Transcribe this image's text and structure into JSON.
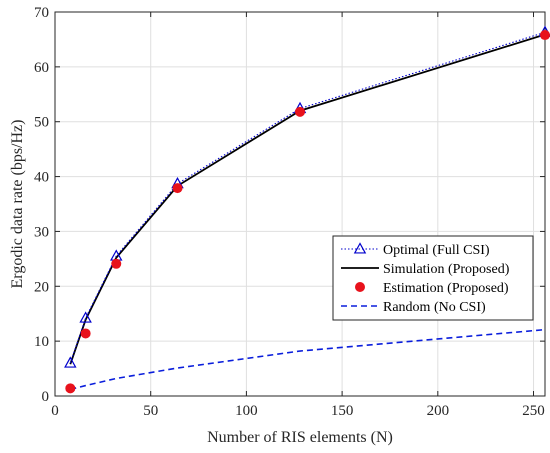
{
  "chart_data": {
    "type": "line",
    "title": "",
    "xlabel": "Number of RIS elements (N)",
    "ylabel": "Ergodic data rate (bps/Hz)",
    "xlim": [
      0,
      256
    ],
    "ylim": [
      0,
      70
    ],
    "xticks": [
      0,
      50,
      100,
      150,
      200,
      250
    ],
    "yticks": [
      0,
      10,
      20,
      30,
      40,
      50,
      60,
      70
    ],
    "grid": true,
    "legend_position": "bottom-right",
    "series": [
      {
        "name": "Optimal (Full CSI)",
        "style": "dotted-triangle",
        "color": "#0000cc",
        "x": [
          8,
          16,
          32,
          64,
          128,
          256
        ],
        "y": [
          6.0,
          14.2,
          25.5,
          38.7,
          52.4,
          66.3
        ]
      },
      {
        "name": "Simulation (Proposed)",
        "style": "solid",
        "color": "#000000",
        "x": [
          8,
          16,
          32,
          64,
          128,
          256
        ],
        "y": [
          5.8,
          13.9,
          25.2,
          38.3,
          52.0,
          65.9
        ]
      },
      {
        "name": "Estimation (Proposed)",
        "style": "marker-circle",
        "color": "#e8121c",
        "x": [
          8,
          16,
          32,
          64,
          128,
          256
        ],
        "y": [
          1.4,
          11.4,
          24.1,
          37.9,
          51.8,
          65.8
        ]
      },
      {
        "name": "Random (No CSI)",
        "style": "dashed",
        "color": "#0a1edc",
        "x": [
          8,
          16,
          32,
          64,
          128,
          256
        ],
        "y": [
          1.2,
          1.9,
          3.2,
          5.1,
          8.2,
          12.1
        ]
      }
    ]
  }
}
